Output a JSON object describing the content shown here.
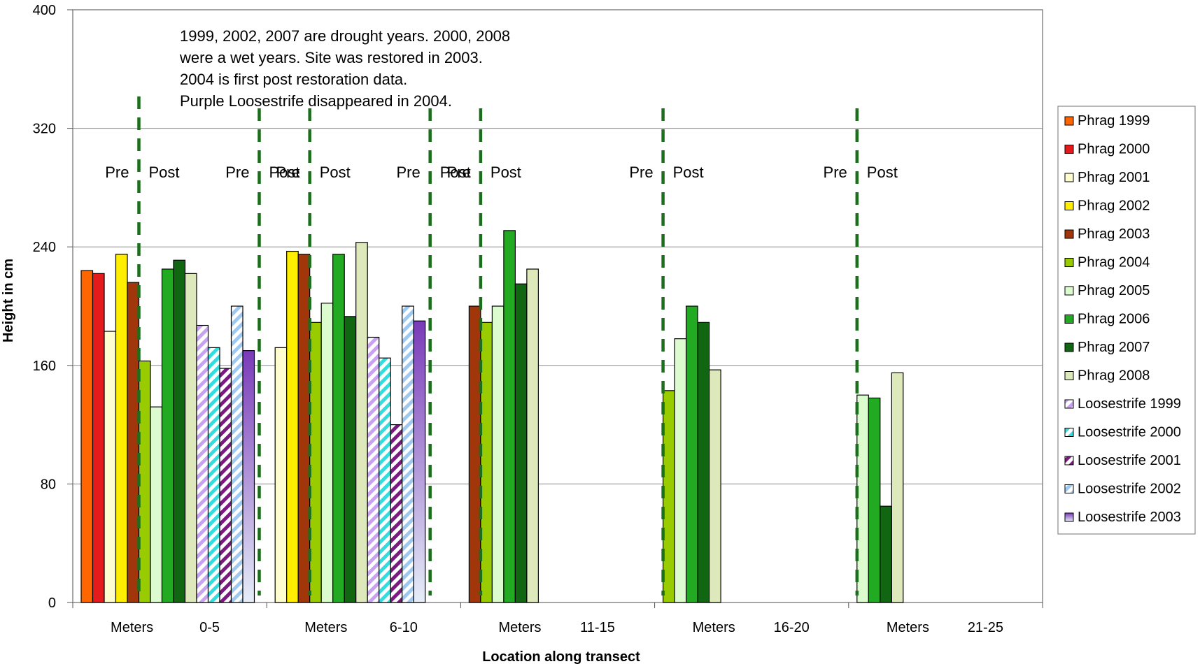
{
  "chart_data": {
    "type": "bar",
    "title": "",
    "xlabel": "Location along transect",
    "ylabel": "Height in cm",
    "ylim": [
      0,
      400
    ],
    "yticks": [
      0,
      80,
      160,
      240,
      320,
      400
    ],
    "grid": "horizontal",
    "legend_position": "right",
    "categories": [
      "Meters      0-5",
      "Meters      6-10",
      "Meters      11-15",
      "Meters      16-20",
      "Meters      21-25"
    ],
    "series": [
      {
        "name": "Phrag 1999",
        "color": "#ff6600",
        "pattern": "solid",
        "values": [
          224,
          null,
          null,
          null,
          null
        ]
      },
      {
        "name": "Phrag 2000",
        "color": "#e41a1c",
        "pattern": "solid",
        "values": [
          222,
          null,
          null,
          null,
          null
        ]
      },
      {
        "name": "Phrag 2001",
        "color": "#fdfdd0",
        "pattern": "solid",
        "values": [
          183,
          172,
          null,
          null,
          null
        ]
      },
      {
        "name": "Phrag 2002",
        "color": "#ffee00",
        "pattern": "solid",
        "values": [
          235,
          237,
          null,
          null,
          null
        ]
      },
      {
        "name": "Phrag 2003",
        "color": "#a0360a",
        "pattern": "solid",
        "values": [
          216,
          235,
          200,
          null,
          null
        ]
      },
      {
        "name": "Phrag 2004",
        "color": "#99cc00",
        "pattern": "solid",
        "values": [
          163,
          189,
          189,
          143,
          null
        ]
      },
      {
        "name": "Phrag 2005",
        "color": "#dcfcd0",
        "pattern": "solid",
        "values": [
          132,
          202,
          200,
          178,
          140
        ]
      },
      {
        "name": "Phrag 2006",
        "color": "#22aa22",
        "pattern": "solid",
        "values": [
          225,
          235,
          251,
          200,
          138
        ]
      },
      {
        "name": "Phrag 2007",
        "color": "#116611",
        "pattern": "solid",
        "values": [
          231,
          193,
          215,
          189,
          65
        ]
      },
      {
        "name": "Phrag 2008",
        "color": "#dde8bb",
        "pattern": "solid",
        "values": [
          222,
          243,
          225,
          157,
          155
        ]
      },
      {
        "name": "Loosestrife 1999",
        "color": "#c8a2f0",
        "pattern": "stripe",
        "values": [
          187,
          179,
          null,
          null,
          null
        ]
      },
      {
        "name": "Loosestrife 2000",
        "color": "#33dddd",
        "pattern": "stripe",
        "values": [
          172,
          165,
          null,
          null,
          null
        ]
      },
      {
        "name": "Loosestrife 2001",
        "color": "#7a1a80",
        "pattern": "stripe",
        "values": [
          158,
          120,
          null,
          null,
          null
        ]
      },
      {
        "name": "Loosestrife 2002",
        "color": "#9ec8f0",
        "pattern": "stripe",
        "values": [
          200,
          200,
          null,
          null,
          null
        ]
      },
      {
        "name": "Loosestrife 2003",
        "color": "#7a3ab8",
        "pattern": "gradient",
        "values": [
          170,
          190,
          null,
          null,
          null
        ]
      }
    ],
    "annotations": [
      "1999,  2002, 2007 are drought years.  2000, 2008",
      "were a wet years.  Site was restored in 2003.",
      " 2004 is first post restoration data.",
      "Purple Loosestrife disappeared in 2004."
    ],
    "dividers": {
      "color": "#1b6e1b",
      "labels": {
        "pre": "Pre",
        "post": "Post"
      }
    }
  }
}
